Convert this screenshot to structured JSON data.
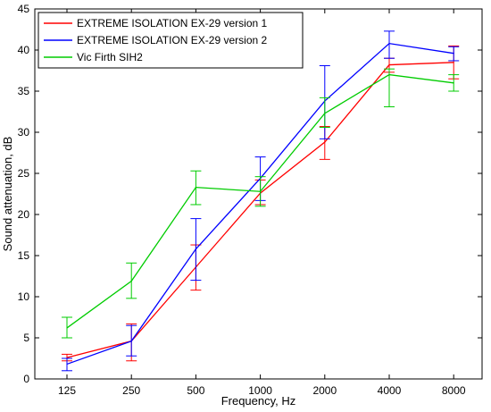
{
  "chart_data": {
    "type": "line",
    "categories": [
      "125",
      "250",
      "500",
      "1000",
      "2000",
      "4000",
      "8000"
    ],
    "xlabel": "Frequency, Hz",
    "ylabel": "Sound attenuation, dB",
    "ylim": [
      0,
      45
    ],
    "yticks": [
      0,
      5,
      10,
      15,
      20,
      25,
      30,
      35,
      40,
      45
    ],
    "grid": false,
    "legend_position": "top-left",
    "series": [
      {
        "name": "EXTREME ISOLATION EX-29 version 1",
        "color": "#ff0000",
        "values": [
          2.6,
          4.6,
          13.6,
          22.6,
          28.8,
          38.2,
          38.5
        ],
        "err_low": [
          2.2,
          2.2,
          10.8,
          21.2,
          26.7,
          37.3,
          36.5
        ],
        "err_high": [
          3.0,
          6.7,
          16.3,
          24.2,
          30.7,
          39.0,
          40.5
        ]
      },
      {
        "name": "EXTREME ISOLATION EX-29 version 2",
        "color": "#0000ff",
        "values": [
          1.8,
          4.6,
          15.8,
          24.4,
          33.8,
          40.8,
          39.6
        ],
        "err_low": [
          1.0,
          2.8,
          12.0,
          21.7,
          29.2,
          39.0,
          38.7
        ],
        "err_high": [
          2.5,
          6.5,
          19.5,
          27.0,
          38.1,
          42.3,
          40.4
        ]
      },
      {
        "name": "Vic Firth SIH2",
        "color": "#00cc00",
        "values": [
          6.2,
          11.9,
          23.3,
          22.8,
          32.3,
          37.0,
          36.0
        ],
        "err_low": [
          5.0,
          9.8,
          21.2,
          21.0,
          30.6,
          33.1,
          35.0
        ],
        "err_high": [
          7.5,
          14.1,
          25.3,
          24.6,
          34.2,
          37.7,
          37.0
        ]
      }
    ]
  }
}
